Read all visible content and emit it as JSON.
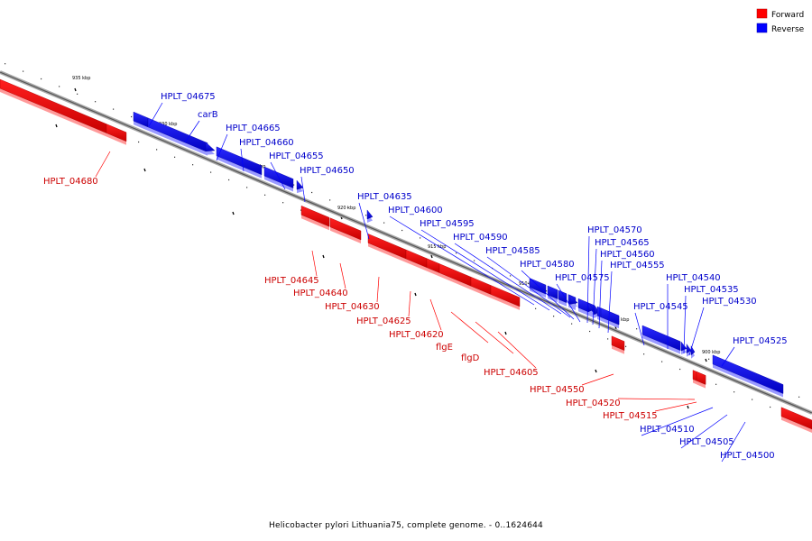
{
  "legend": [
    {
      "label": "Forward",
      "color": "#ff0000"
    },
    {
      "label": "Reverse",
      "color": "#0000ff"
    }
  ],
  "caption": "Helicobacter pylori Lithuania75, complete genome. - 0..1624644",
  "scale_labels": [
    "935 kbp",
    "930 kbp",
    "925 kbp",
    "920 kbp",
    "915 kbp",
    "910 kbp",
    "905 kbp",
    "900 kbp"
  ],
  "genes": [
    {
      "name": "HPLT_04680",
      "strand": "forward"
    },
    {
      "name": "HPLT_04675",
      "strand": "reverse"
    },
    {
      "name": "carB",
      "strand": "reverse"
    },
    {
      "name": "HPLT_04665",
      "strand": "reverse"
    },
    {
      "name": "HPLT_04660",
      "strand": "reverse"
    },
    {
      "name": "HPLT_04655",
      "strand": "reverse"
    },
    {
      "name": "HPLT_04650",
      "strand": "reverse"
    },
    {
      "name": "HPLT_04645",
      "strand": "forward"
    },
    {
      "name": "HPLT_04640",
      "strand": "forward"
    },
    {
      "name": "HPLT_04635",
      "strand": "reverse"
    },
    {
      "name": "HPLT_04630",
      "strand": "forward"
    },
    {
      "name": "HPLT_04625",
      "strand": "forward"
    },
    {
      "name": "HPLT_04620",
      "strand": "forward"
    },
    {
      "name": "flgE",
      "strand": "forward"
    },
    {
      "name": "flgD",
      "strand": "forward"
    },
    {
      "name": "HPLT_04605",
      "strand": "forward"
    },
    {
      "name": "HPLT_04600",
      "strand": "reverse"
    },
    {
      "name": "HPLT_04595",
      "strand": "reverse"
    },
    {
      "name": "HPLT_04590",
      "strand": "reverse"
    },
    {
      "name": "HPLT_04585",
      "strand": "reverse"
    },
    {
      "name": "HPLT_04580",
      "strand": "reverse"
    },
    {
      "name": "HPLT_04575",
      "strand": "reverse"
    },
    {
      "name": "HPLT_04570",
      "strand": "reverse"
    },
    {
      "name": "HPLT_04565",
      "strand": "reverse"
    },
    {
      "name": "HPLT_04560",
      "strand": "reverse"
    },
    {
      "name": "HPLT_04555",
      "strand": "reverse"
    },
    {
      "name": "HPLT_04550",
      "strand": "forward"
    },
    {
      "name": "HPLT_04545",
      "strand": "reverse"
    },
    {
      "name": "HPLT_04540",
      "strand": "reverse"
    },
    {
      "name": "HPLT_04535",
      "strand": "reverse"
    },
    {
      "name": "HPLT_04530",
      "strand": "reverse"
    },
    {
      "name": "HPLT_04525",
      "strand": "reverse"
    },
    {
      "name": "HPLT_04520",
      "strand": "forward"
    },
    {
      "name": "HPLT_04515",
      "strand": "forward"
    },
    {
      "name": "HPLT_04510",
      "strand": "reverse"
    },
    {
      "name": "HPLT_04505",
      "strand": "reverse"
    },
    {
      "name": "HPLT_04500",
      "strand": "reverse"
    }
  ]
}
